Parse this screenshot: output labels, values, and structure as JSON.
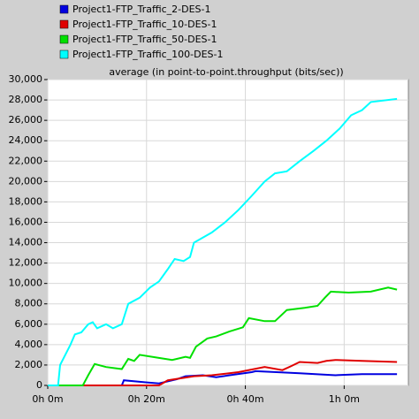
{
  "chart_data": {
    "type": "line",
    "title": "average (in point-to-point.throughput (bits/sec))",
    "xlim": [
      0,
      73
    ],
    "xticks": [
      {
        "value": 0,
        "label": "0h 0m"
      },
      {
        "value": 20,
        "label": "0h 20m"
      },
      {
        "value": 40,
        "label": "0h 40m"
      },
      {
        "value": 60,
        "label": "1h 0m"
      }
    ],
    "ylim": [
      0,
      30000
    ],
    "yticks": [
      0,
      {
        "value": 2000,
        "label": "2,000"
      },
      {
        "value": 4000,
        "label": "4,000"
      },
      {
        "value": 6000,
        "label": "6,000"
      },
      {
        "value": 8000,
        "label": "8,000"
      },
      {
        "value": 10000,
        "label": "10,000"
      },
      {
        "value": 12000,
        "label": "12,000"
      },
      {
        "value": 14000,
        "label": "14,000"
      },
      {
        "value": 16000,
        "label": "16,000"
      },
      {
        "value": 18000,
        "label": "18,000"
      },
      {
        "value": 20000,
        "label": "20,000"
      },
      {
        "value": 22000,
        "label": "22,000"
      },
      {
        "value": 24000,
        "label": "24,000"
      },
      {
        "value": 26000,
        "label": "26,000"
      },
      {
        "value": 28000,
        "label": "28,000"
      },
      {
        "value": 30000,
        "label": "30,000"
      }
    ],
    "grid": true,
    "legend": "top-left",
    "series": [
      {
        "name": "Project1-FTP_Traffic_2-DES-1",
        "color": "#0000e0",
        "x": [
          0,
          15,
          15.4,
          19.8,
          22.5,
          26.1,
          27.9,
          31.4,
          34.1,
          36.8,
          41.3,
          42.1,
          51,
          58.2,
          63.6,
          70.7
        ],
        "values": [
          0,
          0,
          500,
          300,
          200,
          600,
          900,
          1000,
          800,
          1000,
          1300,
          1400,
          1200,
          1000,
          1100,
          1100
        ]
      },
      {
        "name": "Project1-FTP_Traffic_10-DES-1",
        "color": "#e00000",
        "x": [
          0,
          22.5,
          24.3,
          29.6,
          33.2,
          38.6,
          43.9,
          47.5,
          49.3,
          51,
          54.6,
          56.4,
          58.2,
          63.6,
          70.7
        ],
        "values": [
          0,
          0,
          500,
          900,
          1000,
          1300,
          1800,
          1500,
          1900,
          2300,
          2200,
          2400,
          2500,
          2400,
          2300
        ]
      },
      {
        "name": "Project1-FTP_Traffic_50-DES-1",
        "color": "#00e000",
        "x": [
          0,
          7.1,
          8.2,
          9.5,
          11.8,
          15,
          16.3,
          17.5,
          18.6,
          22.5,
          25.2,
          27.9,
          28.8,
          30,
          32.3,
          34.1,
          36.8,
          39.5,
          40.7,
          43.9,
          46,
          48.4,
          52,
          54.6,
          56.1,
          57.3,
          60.9,
          65.4,
          68.9,
          70.7
        ],
        "values": [
          0,
          0,
          1000,
          2100,
          1800,
          1600,
          2600,
          2400,
          3000,
          2700,
          2500,
          2800,
          2700,
          3800,
          4600,
          4800,
          5300,
          5700,
          6600,
          6300,
          6300,
          7400,
          7600,
          7800,
          8600,
          9200,
          9100,
          9200,
          9600,
          9400
        ]
      },
      {
        "name": "Project1-FTP_Traffic_100-DES-1",
        "color": "#00ffff",
        "x": [
          0,
          2.1,
          2.5,
          4.6,
          5.5,
          6.8,
          8.2,
          9.1,
          10,
          11.8,
          13.2,
          15,
          16.3,
          18.6,
          20.7,
          22.5,
          24.3,
          25.7,
          27.5,
          28.8,
          29.6,
          33.2,
          35.9,
          38.6,
          41.3,
          43.9,
          46,
          48.4,
          51,
          53.8,
          56.4,
          59.1,
          61.4,
          63.6,
          65.4,
          70.7
        ],
        "values": [
          0,
          0,
          2000,
          4000,
          5000,
          5200,
          6000,
          6200,
          5600,
          6000,
          5600,
          6000,
          8000,
          8600,
          9600,
          10200,
          11400,
          12400,
          12200,
          12600,
          14000,
          15000,
          16000,
          17200,
          18600,
          20000,
          20800,
          21000,
          22000,
          23000,
          24000,
          25200,
          26500,
          27000,
          27800,
          28100
        ]
      }
    ]
  }
}
